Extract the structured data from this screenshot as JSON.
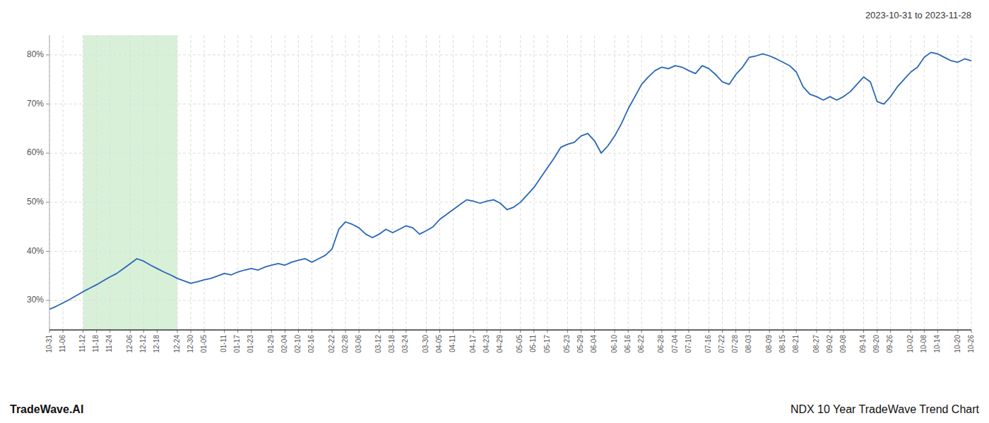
{
  "chart_data": {
    "type": "line",
    "title": "2023-10-31 to 2023-11-28",
    "annotations": [
      "TradeWave.AI",
      "NDX 10 Year TradeWave Trend Chart"
    ],
    "color": "#2866b8",
    "grid": true,
    "highlight": {
      "range": [
        5,
        19
      ],
      "color": "#d8f0d8"
    },
    "ylim": [
      24,
      84
    ],
    "yticks": [
      {
        "value": 30,
        "label": "30%"
      },
      {
        "value": 40,
        "label": "40%"
      },
      {
        "value": 50,
        "label": "50%"
      },
      {
        "value": 60,
        "label": "60%"
      },
      {
        "value": 70,
        "label": "70%"
      },
      {
        "value": 80,
        "label": "80%"
      }
    ],
    "categories": [
      "10-31",
      null,
      "11-06",
      null,
      null,
      "11-12",
      null,
      "11-18",
      null,
      "11-24",
      null,
      null,
      "12-06",
      null,
      "12-12",
      null,
      "12-18",
      null,
      null,
      "12-24",
      null,
      "12-30",
      null,
      "01-05",
      null,
      null,
      "01-11",
      null,
      "01-17",
      null,
      "01-23",
      null,
      null,
      "01-29",
      null,
      "02-04",
      null,
      "02-10",
      null,
      "02-16",
      null,
      null,
      "02-22",
      null,
      "02-28",
      null,
      "03-06",
      null,
      null,
      "03-12",
      null,
      "03-18",
      null,
      "03-24",
      null,
      null,
      "03-30",
      null,
      "04-05",
      null,
      "04-11",
      null,
      null,
      "04-17",
      null,
      "04-23",
      null,
      "04-29",
      null,
      null,
      "05-05",
      null,
      "05-11",
      null,
      "05-17",
      null,
      null,
      "05-23",
      null,
      "05-29",
      null,
      "06-04",
      null,
      null,
      "06-10",
      null,
      "06-16",
      null,
      "06-22",
      null,
      null,
      "06-28",
      null,
      "07-04",
      null,
      "07-10",
      null,
      null,
      "07-16",
      null,
      "07-22",
      null,
      "07-28",
      null,
      "08-03",
      null,
      null,
      "08-09",
      null,
      "08-15",
      null,
      "08-21",
      null,
      null,
      "08-27",
      null,
      "09-02",
      null,
      "09-08",
      null,
      null,
      "09-14",
      null,
      "09-20",
      null,
      "09-26",
      null,
      null,
      "10-02",
      null,
      "10-08",
      null,
      "10-14",
      null,
      null,
      "10-20",
      null,
      "10-26"
    ],
    "values": [
      28.2,
      28.8,
      29.5,
      30.2,
      31.0,
      31.8,
      32.5,
      33.2,
      34.0,
      34.8,
      35.5,
      36.5,
      37.5,
      38.5,
      38.0,
      37.2,
      36.5,
      35.8,
      35.2,
      34.5,
      34.0,
      33.5,
      33.8,
      34.2,
      34.5,
      35.0,
      35.5,
      35.2,
      35.8,
      36.2,
      36.5,
      36.2,
      36.8,
      37.2,
      37.5,
      37.2,
      37.8,
      38.2,
      38.5,
      37.8,
      38.5,
      39.2,
      40.5,
      44.5,
      46.0,
      45.5,
      44.8,
      43.5,
      42.8,
      43.5,
      44.5,
      43.8,
      44.5,
      45.2,
      44.8,
      43.5,
      44.2,
      45.0,
      46.5,
      47.5,
      48.5,
      49.5,
      50.5,
      50.2,
      49.8,
      50.2,
      50.5,
      49.8,
      48.5,
      49.0,
      50.0,
      51.5,
      53.0,
      55.0,
      57.0,
      59.0,
      61.2,
      61.8,
      62.2,
      63.5,
      64.0,
      62.5,
      60.0,
      61.5,
      63.5,
      66.0,
      69.0,
      71.5,
      74.0,
      75.5,
      76.8,
      77.5,
      77.2,
      77.8,
      77.5,
      76.8,
      76.2,
      77.8,
      77.2,
      76.0,
      74.5,
      74.0,
      76.0,
      77.5,
      79.5,
      79.8,
      80.2,
      79.8,
      79.2,
      78.5,
      77.8,
      76.5,
      73.5,
      72.0,
      71.5,
      70.8,
      71.5,
      70.8,
      71.5,
      72.5,
      74.0,
      75.5,
      74.5,
      70.5,
      70.0,
      71.5,
      73.5,
      75.0,
      76.5,
      77.5,
      79.5,
      80.5,
      80.2,
      79.5,
      78.8,
      78.5,
      79.2,
      78.8
    ]
  }
}
